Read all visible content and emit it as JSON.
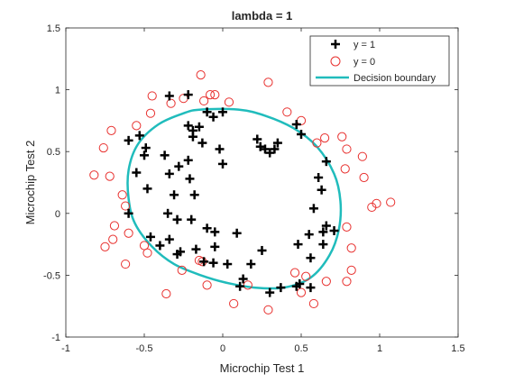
{
  "chart_data": {
    "type": "scatter",
    "title": "lambda = 1",
    "xlabel": "Microchip Test 1",
    "ylabel": "Microchip Test 2",
    "xlim": [
      -1,
      1.5
    ],
    "ylim": [
      -1,
      1.5
    ],
    "xticks": [
      "-1",
      "-0.5",
      "0",
      "0.5",
      "1",
      "1.5"
    ],
    "yticks": [
      "-1",
      "-0.5",
      "0",
      "0.5",
      "1",
      "1.5"
    ],
    "xtick_values": [
      -1,
      -0.5,
      0,
      0.5,
      1,
      1.5
    ],
    "ytick_values": [
      -1,
      -0.5,
      0,
      0.5,
      1,
      1.5
    ],
    "grid": false,
    "legend_position": "top-right",
    "colors": {
      "positive": "#000000",
      "negative": "#e8312f",
      "boundary": "#20bcbc"
    },
    "legend": [
      {
        "label": "y = 1",
        "marker": "plus"
      },
      {
        "label": "y = 0",
        "marker": "circle"
      },
      {
        "label": "Decision boundary",
        "marker": "line"
      }
    ],
    "series": [
      {
        "name": "y = 1",
        "marker": "plus",
        "points": [
          [
            -0.53,
            0.63
          ],
          [
            -0.6,
            0.59
          ],
          [
            -0.49,
            0.53
          ],
          [
            -0.34,
            0.95
          ],
          [
            -0.22,
            0.96
          ],
          [
            -0.1,
            0.82
          ],
          [
            -0.22,
            0.71
          ],
          [
            -0.19,
            0.67
          ],
          [
            -0.15,
            0.7
          ],
          [
            -0.19,
            0.62
          ],
          [
            -0.13,
            0.57
          ],
          [
            -0.06,
            0.78
          ],
          [
            0.0,
            0.82
          ],
          [
            -0.02,
            0.52
          ],
          [
            0.22,
            0.6
          ],
          [
            0.24,
            0.54
          ],
          [
            0.27,
            0.52
          ],
          [
            0.3,
            0.49
          ],
          [
            0.33,
            0.52
          ],
          [
            0.35,
            0.57
          ],
          [
            0.47,
            0.72
          ],
          [
            0.5,
            0.64
          ],
          [
            0.66,
            0.42
          ],
          [
            0.61,
            0.29
          ],
          [
            0.63,
            0.19
          ],
          [
            0.58,
            0.04
          ],
          [
            0.66,
            -0.1
          ],
          [
            0.64,
            -0.15
          ],
          [
            0.64,
            -0.25
          ],
          [
            0.71,
            -0.14
          ],
          [
            0.55,
            -0.17
          ],
          [
            0.48,
            -0.25
          ],
          [
            0.56,
            -0.36
          ],
          [
            0.56,
            -0.6
          ],
          [
            0.49,
            -0.57
          ],
          [
            0.47,
            -0.59
          ],
          [
            0.37,
            -0.6
          ],
          [
            0.3,
            -0.64
          ],
          [
            0.11,
            -0.59
          ],
          [
            0.13,
            -0.53
          ],
          [
            0.18,
            -0.41
          ],
          [
            0.25,
            -0.3
          ],
          [
            0.09,
            -0.16
          ],
          [
            0.03,
            -0.41
          ],
          [
            -0.06,
            -0.4
          ],
          [
            -0.12,
            -0.39
          ],
          [
            -0.17,
            -0.29
          ],
          [
            -0.05,
            -0.27
          ],
          [
            -0.1,
            -0.12
          ],
          [
            -0.2,
            -0.05
          ],
          [
            -0.29,
            -0.05
          ],
          [
            -0.34,
            -0.21
          ],
          [
            -0.27,
            -0.31
          ],
          [
            -0.29,
            -0.33
          ],
          [
            -0.4,
            -0.26
          ],
          [
            -0.46,
            -0.19
          ],
          [
            -0.35,
            0.0
          ],
          [
            -0.31,
            0.15
          ],
          [
            -0.34,
            0.32
          ],
          [
            -0.21,
            0.28
          ],
          [
            -0.22,
            0.43
          ],
          [
            -0.28,
            0.38
          ],
          [
            -0.18,
            0.15
          ],
          [
            -0.37,
            0.47
          ],
          [
            -0.5,
            0.47
          ],
          [
            -0.48,
            0.2
          ],
          [
            -0.55,
            0.33
          ],
          [
            -0.6,
            0.0
          ],
          [
            0.0,
            0.4
          ],
          [
            -0.05,
            -0.15
          ]
        ]
      },
      {
        "name": "y = 0",
        "marker": "circle",
        "points": [
          [
            -0.82,
            0.31
          ],
          [
            -0.72,
            0.3
          ],
          [
            -0.76,
            0.53
          ],
          [
            -0.71,
            0.67
          ],
          [
            -0.64,
            0.15
          ],
          [
            -0.62,
            0.06
          ],
          [
            -0.69,
            -0.1
          ],
          [
            -0.75,
            -0.27
          ],
          [
            -0.7,
            -0.21
          ],
          [
            -0.6,
            -0.16
          ],
          [
            -0.62,
            -0.41
          ],
          [
            -0.5,
            -0.26
          ],
          [
            -0.48,
            -0.32
          ],
          [
            -0.55,
            0.71
          ],
          [
            -0.46,
            0.81
          ],
          [
            -0.45,
            0.95
          ],
          [
            -0.33,
            0.89
          ],
          [
            -0.14,
            1.12
          ],
          [
            -0.12,
            0.91
          ],
          [
            -0.05,
            0.96
          ],
          [
            0.04,
            0.9
          ],
          [
            0.29,
            1.06
          ],
          [
            0.41,
            0.82
          ],
          [
            0.5,
            0.75
          ],
          [
            0.6,
            0.57
          ],
          [
            0.65,
            0.61
          ],
          [
            0.76,
            0.62
          ],
          [
            0.79,
            0.52
          ],
          [
            0.78,
            0.36
          ],
          [
            0.89,
            0.46
          ],
          [
            0.9,
            0.29
          ],
          [
            0.95,
            0.05
          ],
          [
            0.98,
            0.08
          ],
          [
            1.07,
            0.09
          ],
          [
            0.79,
            -0.11
          ],
          [
            0.82,
            -0.28
          ],
          [
            0.82,
            -0.46
          ],
          [
            0.79,
            -0.55
          ],
          [
            0.66,
            -0.55
          ],
          [
            0.53,
            -0.51
          ],
          [
            0.46,
            -0.48
          ],
          [
            0.5,
            -0.64
          ],
          [
            0.58,
            -0.73
          ],
          [
            0.29,
            -0.78
          ],
          [
            0.16,
            -0.58
          ],
          [
            0.07,
            -0.73
          ],
          [
            -0.1,
            -0.58
          ],
          [
            -0.13,
            -0.39
          ],
          [
            -0.15,
            -0.38
          ],
          [
            -0.26,
            -0.46
          ],
          [
            -0.36,
            -0.65
          ],
          [
            -0.08,
            0.96
          ],
          [
            -0.25,
            0.93
          ]
        ]
      }
    ],
    "boundary": [
      [
        -0.14,
        0.84
      ],
      [
        0.1,
        0.84
      ],
      [
        0.27,
        0.79
      ],
      [
        0.45,
        0.69
      ],
      [
        0.6,
        0.54
      ],
      [
        0.71,
        0.32
      ],
      [
        0.75,
        0.1
      ],
      [
        0.74,
        -0.13
      ],
      [
        0.68,
        -0.34
      ],
      [
        0.56,
        -0.52
      ],
      [
        0.39,
        -0.6
      ],
      [
        0.2,
        -0.6
      ],
      [
        0.02,
        -0.56
      ],
      [
        -0.14,
        -0.5
      ],
      [
        -0.31,
        -0.41
      ],
      [
        -0.45,
        -0.27
      ],
      [
        -0.56,
        -0.08
      ],
      [
        -0.6,
        0.12
      ],
      [
        -0.6,
        0.35
      ],
      [
        -0.54,
        0.56
      ],
      [
        -0.41,
        0.72
      ],
      [
        -0.25,
        0.81
      ],
      [
        -0.14,
        0.84
      ]
    ]
  }
}
